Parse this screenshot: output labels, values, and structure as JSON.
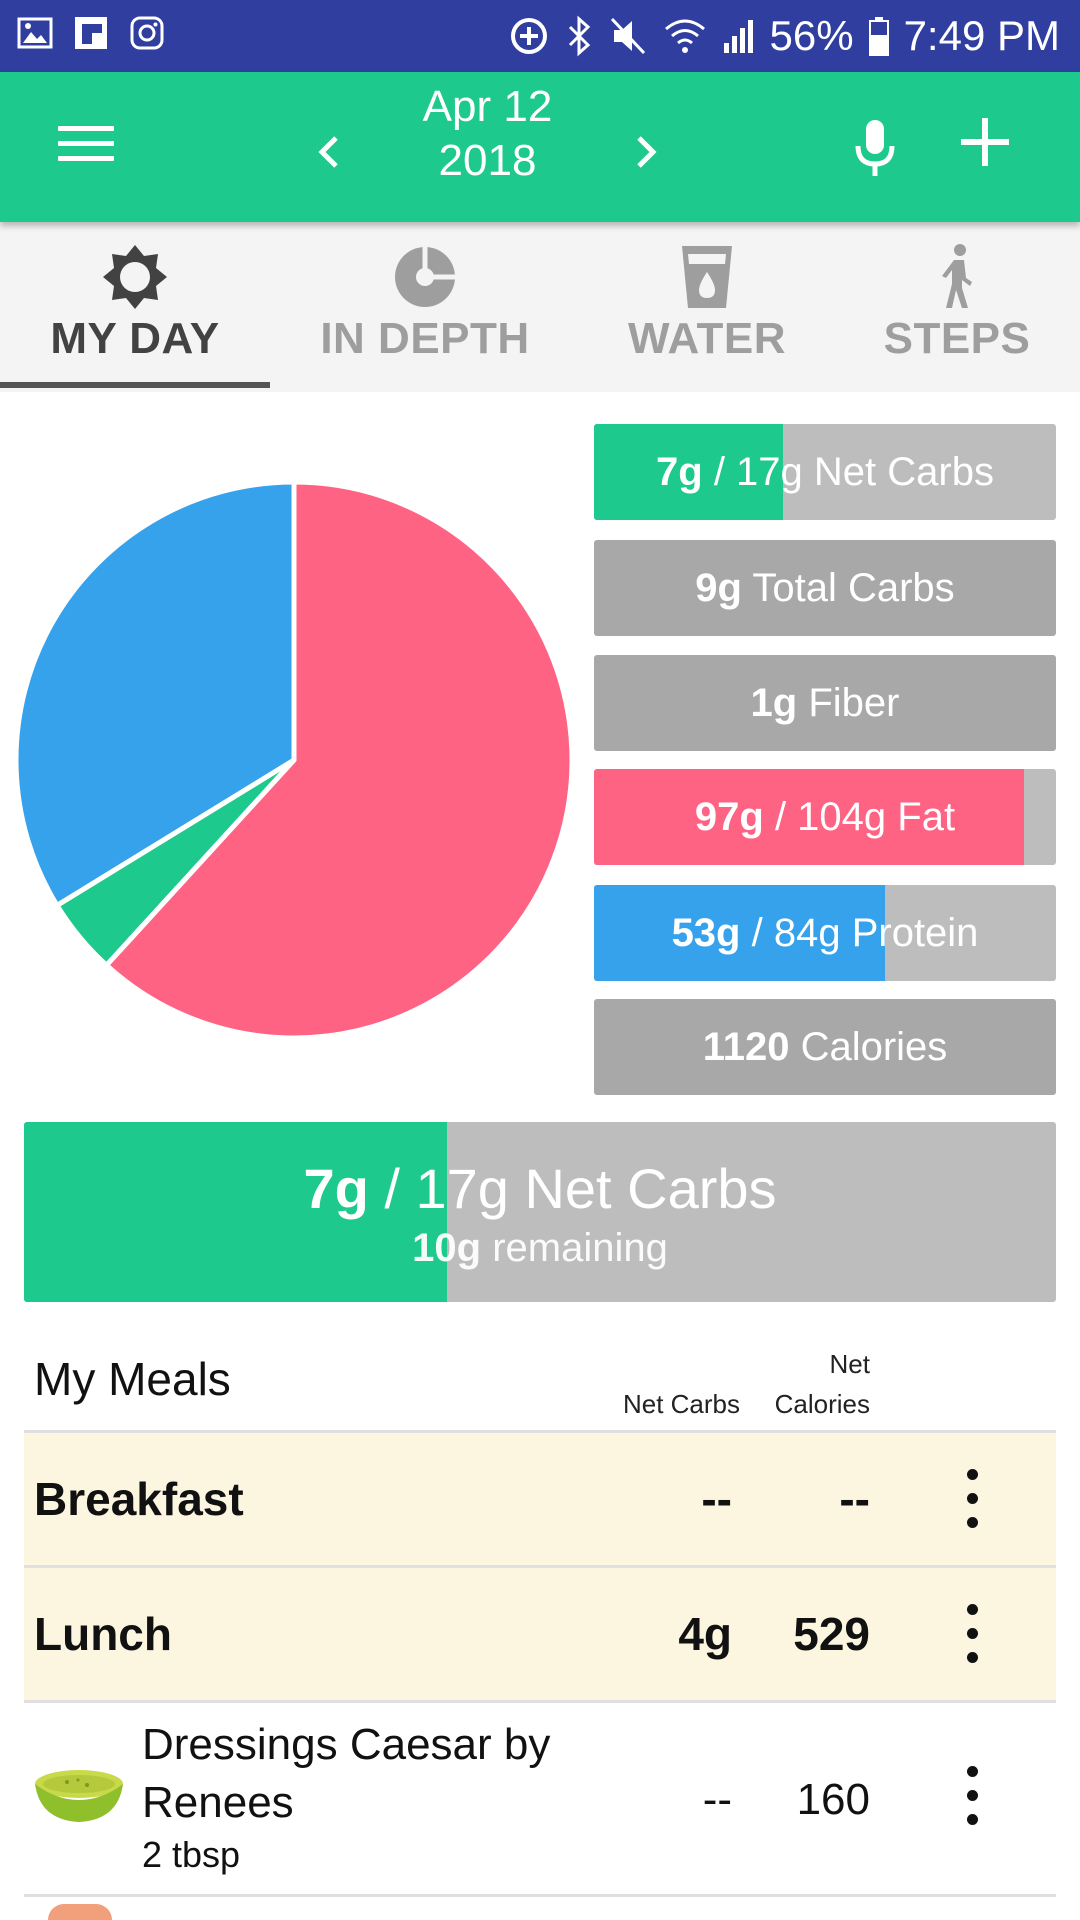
{
  "status_bar": {
    "battery": "56%",
    "time": "7:49 PM"
  },
  "header": {
    "date_line1": "Apr 12",
    "date_line2": "2018"
  },
  "tabs": [
    {
      "label": "MY DAY",
      "icon": "sun-gear-icon",
      "active": true
    },
    {
      "label": "IN DEPTH",
      "icon": "pie-chart-icon",
      "active": false
    },
    {
      "label": "WATER",
      "icon": "water-glass-icon",
      "active": false
    },
    {
      "label": "STEPS",
      "icon": "walking-person-icon",
      "active": false
    }
  ],
  "colors": {
    "primary": "#1ec98d",
    "fat": "#ff6384",
    "protein": "#36a2eb",
    "carbs": "#1ec98d",
    "status_bar": "#303f9f",
    "meal_row": "#fcf6e1"
  },
  "chart_data": {
    "type": "pie",
    "series": [
      {
        "name": "Fat",
        "value": 97,
        "color": "#ff6384"
      },
      {
        "name": "Net Carbs",
        "value": 7,
        "color": "#1ec98d"
      },
      {
        "name": "Protein",
        "value": 53,
        "color": "#36a2eb"
      }
    ]
  },
  "nutrients": {
    "net_carbs": {
      "value": "7g",
      "text": " / 17g Net Carbs",
      "progress": 0.41
    },
    "total_carbs": {
      "value": "9g",
      "text": " Total Carbs"
    },
    "fiber": {
      "value": "1g",
      "text": " Fiber"
    },
    "fat": {
      "value": "97g",
      "text": " / 104g Fat",
      "progress": 0.93
    },
    "protein": {
      "value": "53g",
      "text": " / 84g Protein",
      "progress": 0.63
    },
    "calories": {
      "value": "1120",
      "text": " Calories"
    }
  },
  "summary": {
    "value": "7g",
    "text": " / 17g Net Carbs",
    "remaining_value": "10g",
    "remaining_text": " remaining",
    "progress": 0.41
  },
  "meals": {
    "title": "My Meals",
    "col_net_carbs": "Net Carbs",
    "col_net": "Net",
    "col_calories": "Calories",
    "rows": [
      {
        "name": "Breakfast",
        "net_carbs": "--",
        "calories": "--"
      },
      {
        "name": "Lunch",
        "net_carbs": "4g",
        "calories": "529"
      }
    ],
    "foods": [
      {
        "name": "Dressings Caesar by Renees",
        "serving": "2 tbsp",
        "net_carbs": "--",
        "calories": "160",
        "icon": "dressing-bowl-icon"
      }
    ]
  }
}
